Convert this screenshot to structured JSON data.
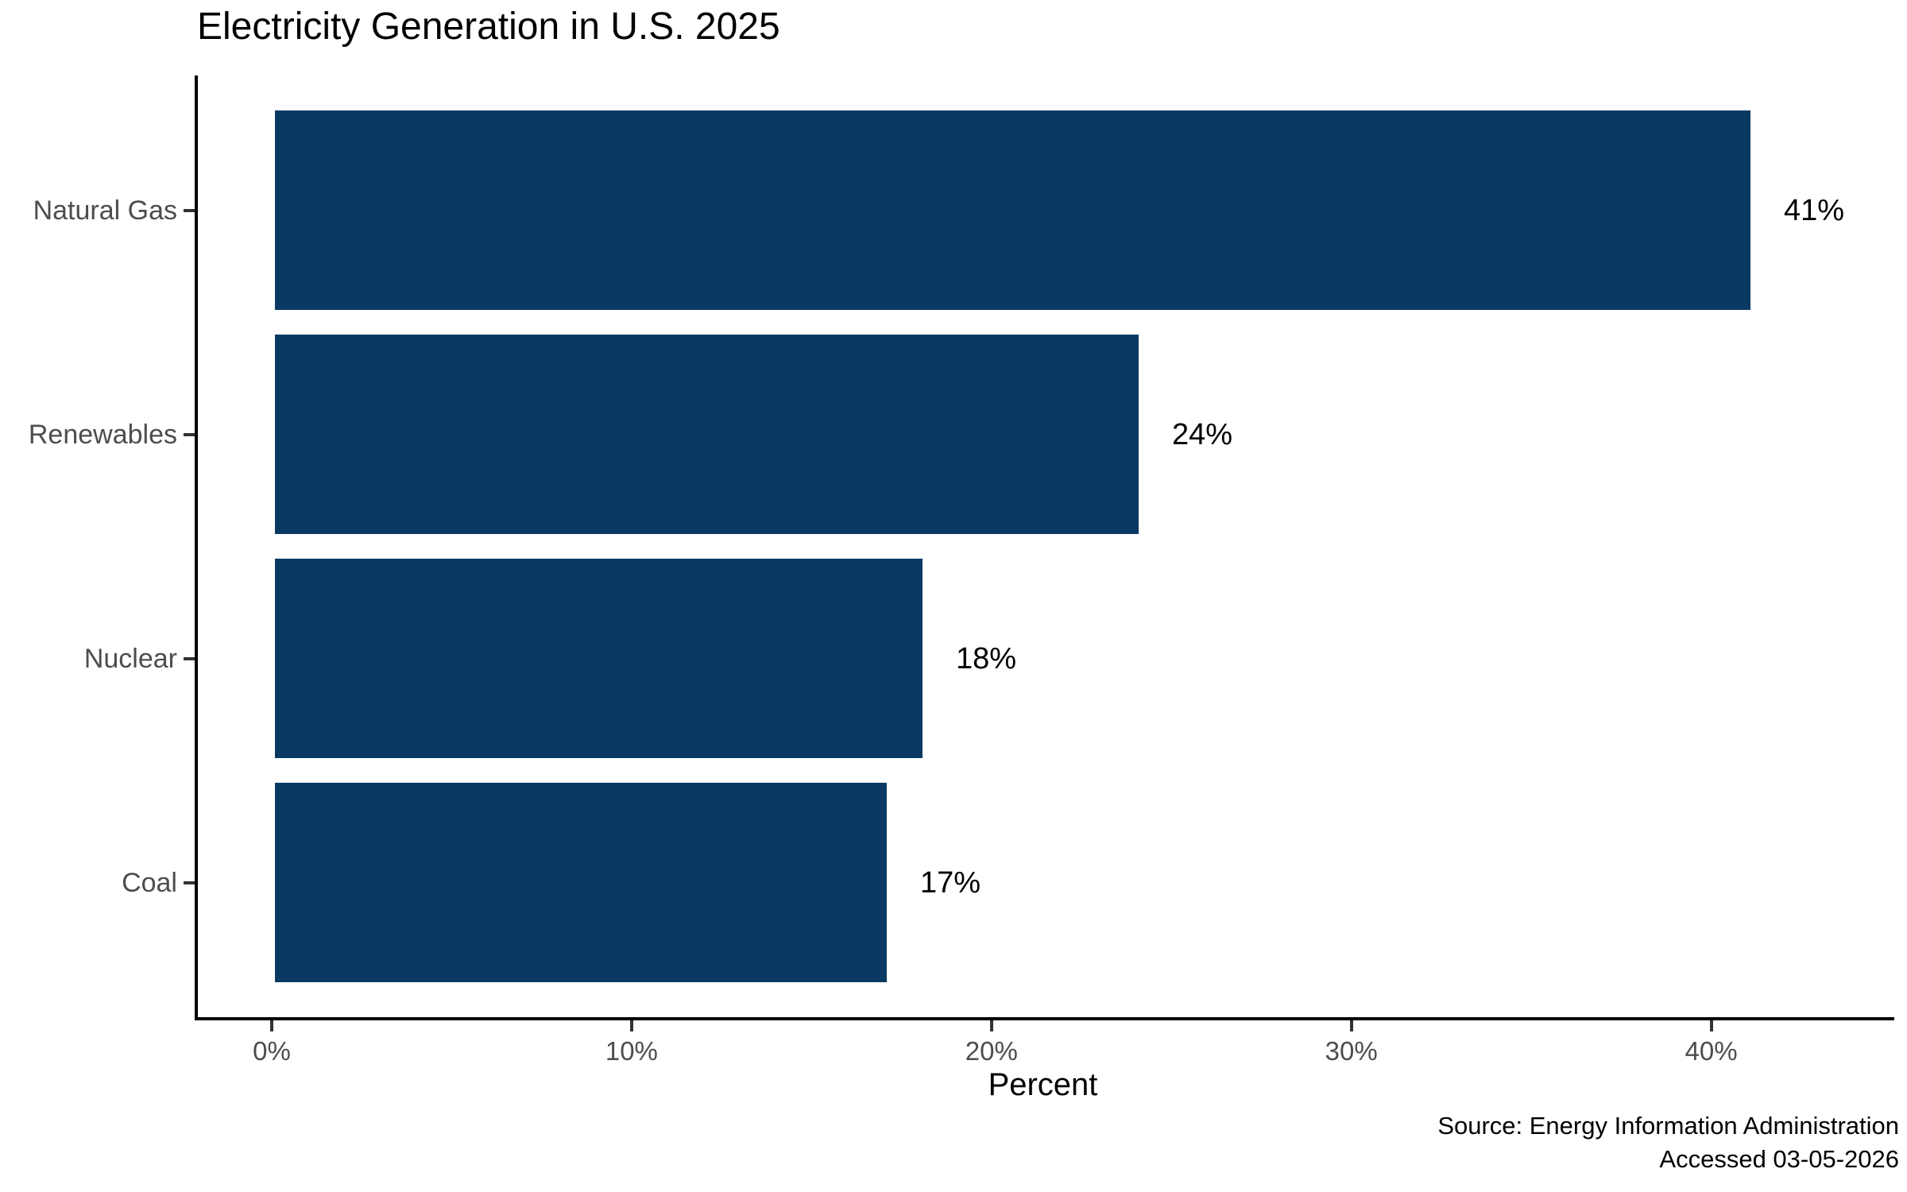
{
  "chart_data": {
    "type": "bar",
    "orientation": "horizontal",
    "title": "Electricity Generation in U.S. 2025",
    "categories": [
      "Natural Gas",
      "Renewables",
      "Nuclear",
      "Coal"
    ],
    "values": [
      41,
      24,
      18,
      17
    ],
    "value_labels": [
      "41%",
      "24%",
      "18%",
      "17%"
    ],
    "xlabel": "Percent",
    "x_ticks": [
      {
        "value": 0,
        "label": "0%"
      },
      {
        "value": 10,
        "label": "10%"
      },
      {
        "value": 20,
        "label": "20%"
      },
      {
        "value": 30,
        "label": "30%"
      },
      {
        "value": 40,
        "label": "40%"
      }
    ],
    "xlim": [
      0,
      45
    ],
    "grid": false,
    "legend": "none",
    "bar_color": "#0a3a63",
    "axis_line_color": "#000000",
    "tick_label_color": "#4d4d4d",
    "value_label_color": "#000000"
  },
  "caption": {
    "line1": "Source: Energy Information Administration",
    "line2": "Accessed 03-05-2026"
  }
}
